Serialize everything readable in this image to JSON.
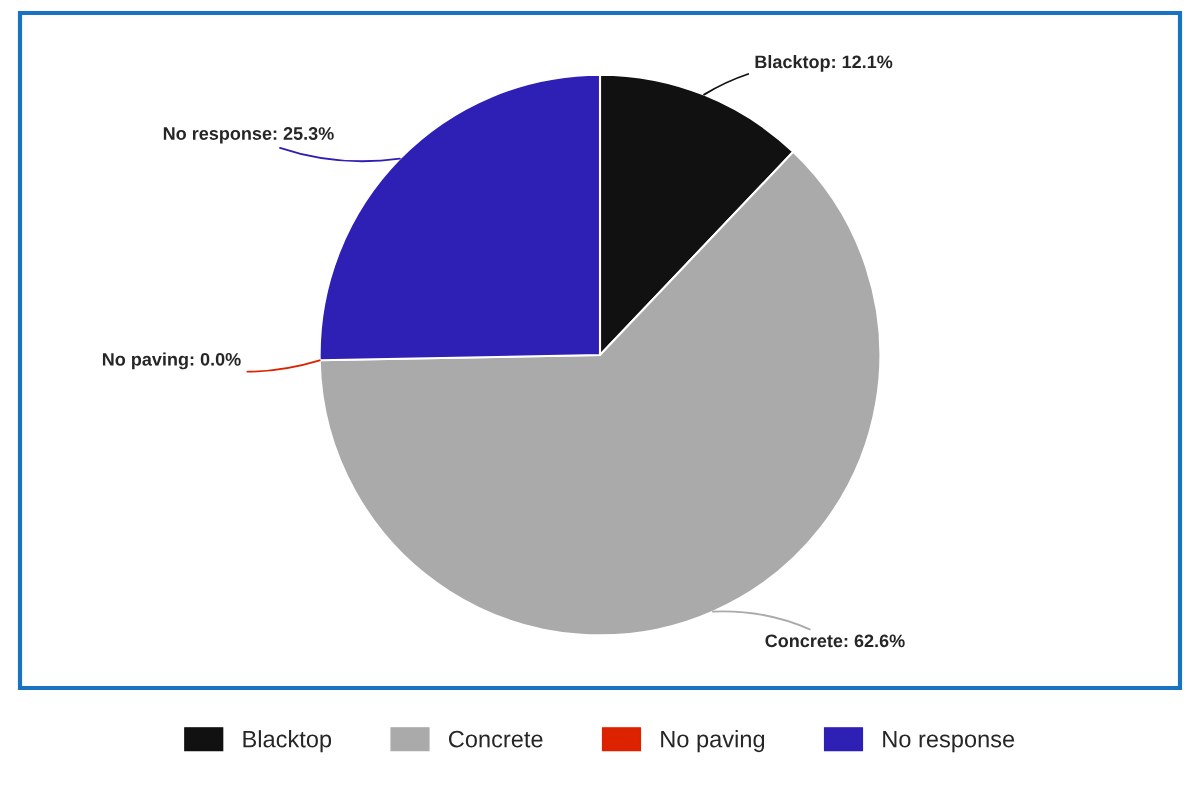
{
  "chart_data": {
    "type": "pie",
    "categories": [
      "Blacktop",
      "Concrete",
      "No paving",
      "No response"
    ],
    "values": [
      12.1,
      62.6,
      0.0,
      25.3
    ],
    "value_labels": [
      "Blacktop: 12.1%",
      "Concrete: 62.6%",
      "No paving: 0.0%",
      "No response: 25.3%"
    ],
    "colors": [
      "#111111",
      "#aaaaaa",
      "#dd2200",
      "#2e1fb5"
    ],
    "legend": "bottom"
  }
}
